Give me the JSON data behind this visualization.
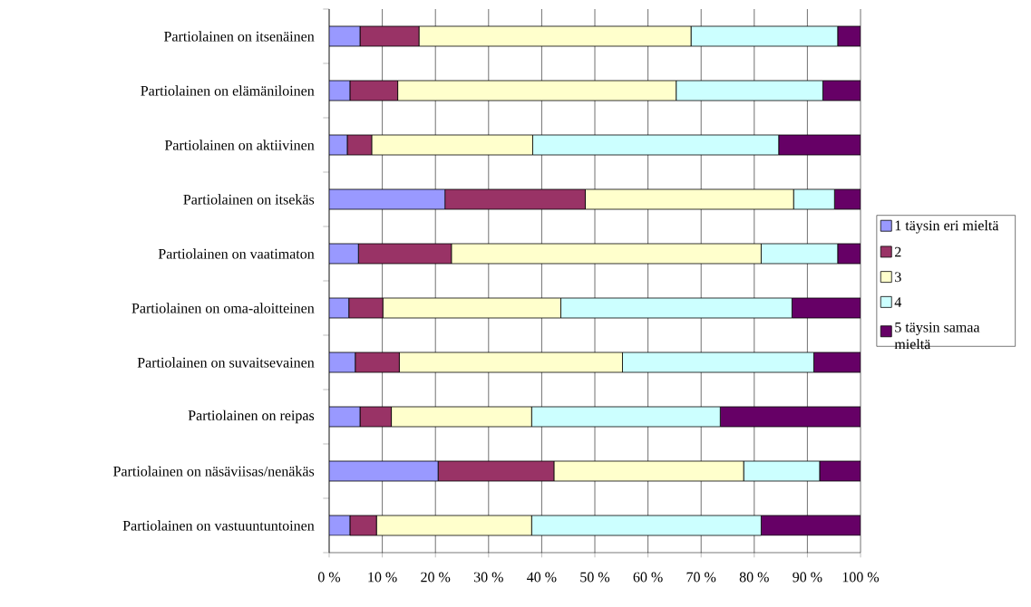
{
  "chart_data": {
    "type": "bar",
    "orientation": "horizontal",
    "stacked": true,
    "categories": [
      "Partiolainen on itsenäinen",
      "Partiolainen on elämäniloinen",
      "Partiolainen on aktiivinen",
      "Partiolainen on itsekäs",
      "Partiolainen on vaatimaton",
      "Partiolainen on oma-aloitteinen",
      "Partiolainen on suvaitsevainen",
      "Partiolainen on reipas",
      "Partiolainen on näsäviisas/nenäkäs",
      "Partiolainen on vastuuntuntoinen"
    ],
    "series": [
      {
        "name": "1 täysin eri mieltä",
        "color": "#9999ff",
        "values": [
          5.8,
          3.9,
          3.4,
          21.8,
          5.5,
          3.7,
          4.9,
          5.8,
          20.5,
          3.9
        ]
      },
      {
        "name": "2",
        "color": "#993366",
        "values": [
          11.1,
          9.0,
          4.6,
          26.4,
          17.5,
          6.4,
          8.3,
          5.9,
          21.8,
          5.0
        ]
      },
      {
        "name": "3",
        "color": "#ffffcc",
        "values": [
          51.2,
          52.4,
          30.3,
          39.2,
          58.3,
          33.5,
          42.0,
          26.4,
          35.7,
          29.2
        ]
      },
      {
        "name": "4",
        "color": "#ccffff",
        "values": [
          27.6,
          27.6,
          46.3,
          7.7,
          14.4,
          43.5,
          36.0,
          35.5,
          14.3,
          43.2
        ]
      },
      {
        "name": "5 täysin samaa mieltä",
        "color": "#660066",
        "values": [
          4.3,
          7.1,
          15.4,
          4.9,
          4.3,
          12.9,
          8.8,
          26.4,
          7.7,
          18.7
        ]
      }
    ],
    "xlim": [
      0,
      100
    ],
    "xticks": [
      {
        "value": 0,
        "label": "0 %"
      },
      {
        "value": 10,
        "label": "10 %"
      },
      {
        "value": 20,
        "label": "20 %"
      },
      {
        "value": 30,
        "label": "30 %"
      },
      {
        "value": 40,
        "label": "40 %"
      },
      {
        "value": 50,
        "label": "50 %"
      },
      {
        "value": 60,
        "label": "60 %"
      },
      {
        "value": 70,
        "label": "70 %"
      },
      {
        "value": 80,
        "label": "80 %"
      },
      {
        "value": 90,
        "label": "90 %"
      },
      {
        "value": 100,
        "label": "100 %"
      }
    ],
    "grid": "x",
    "legend": "right"
  }
}
